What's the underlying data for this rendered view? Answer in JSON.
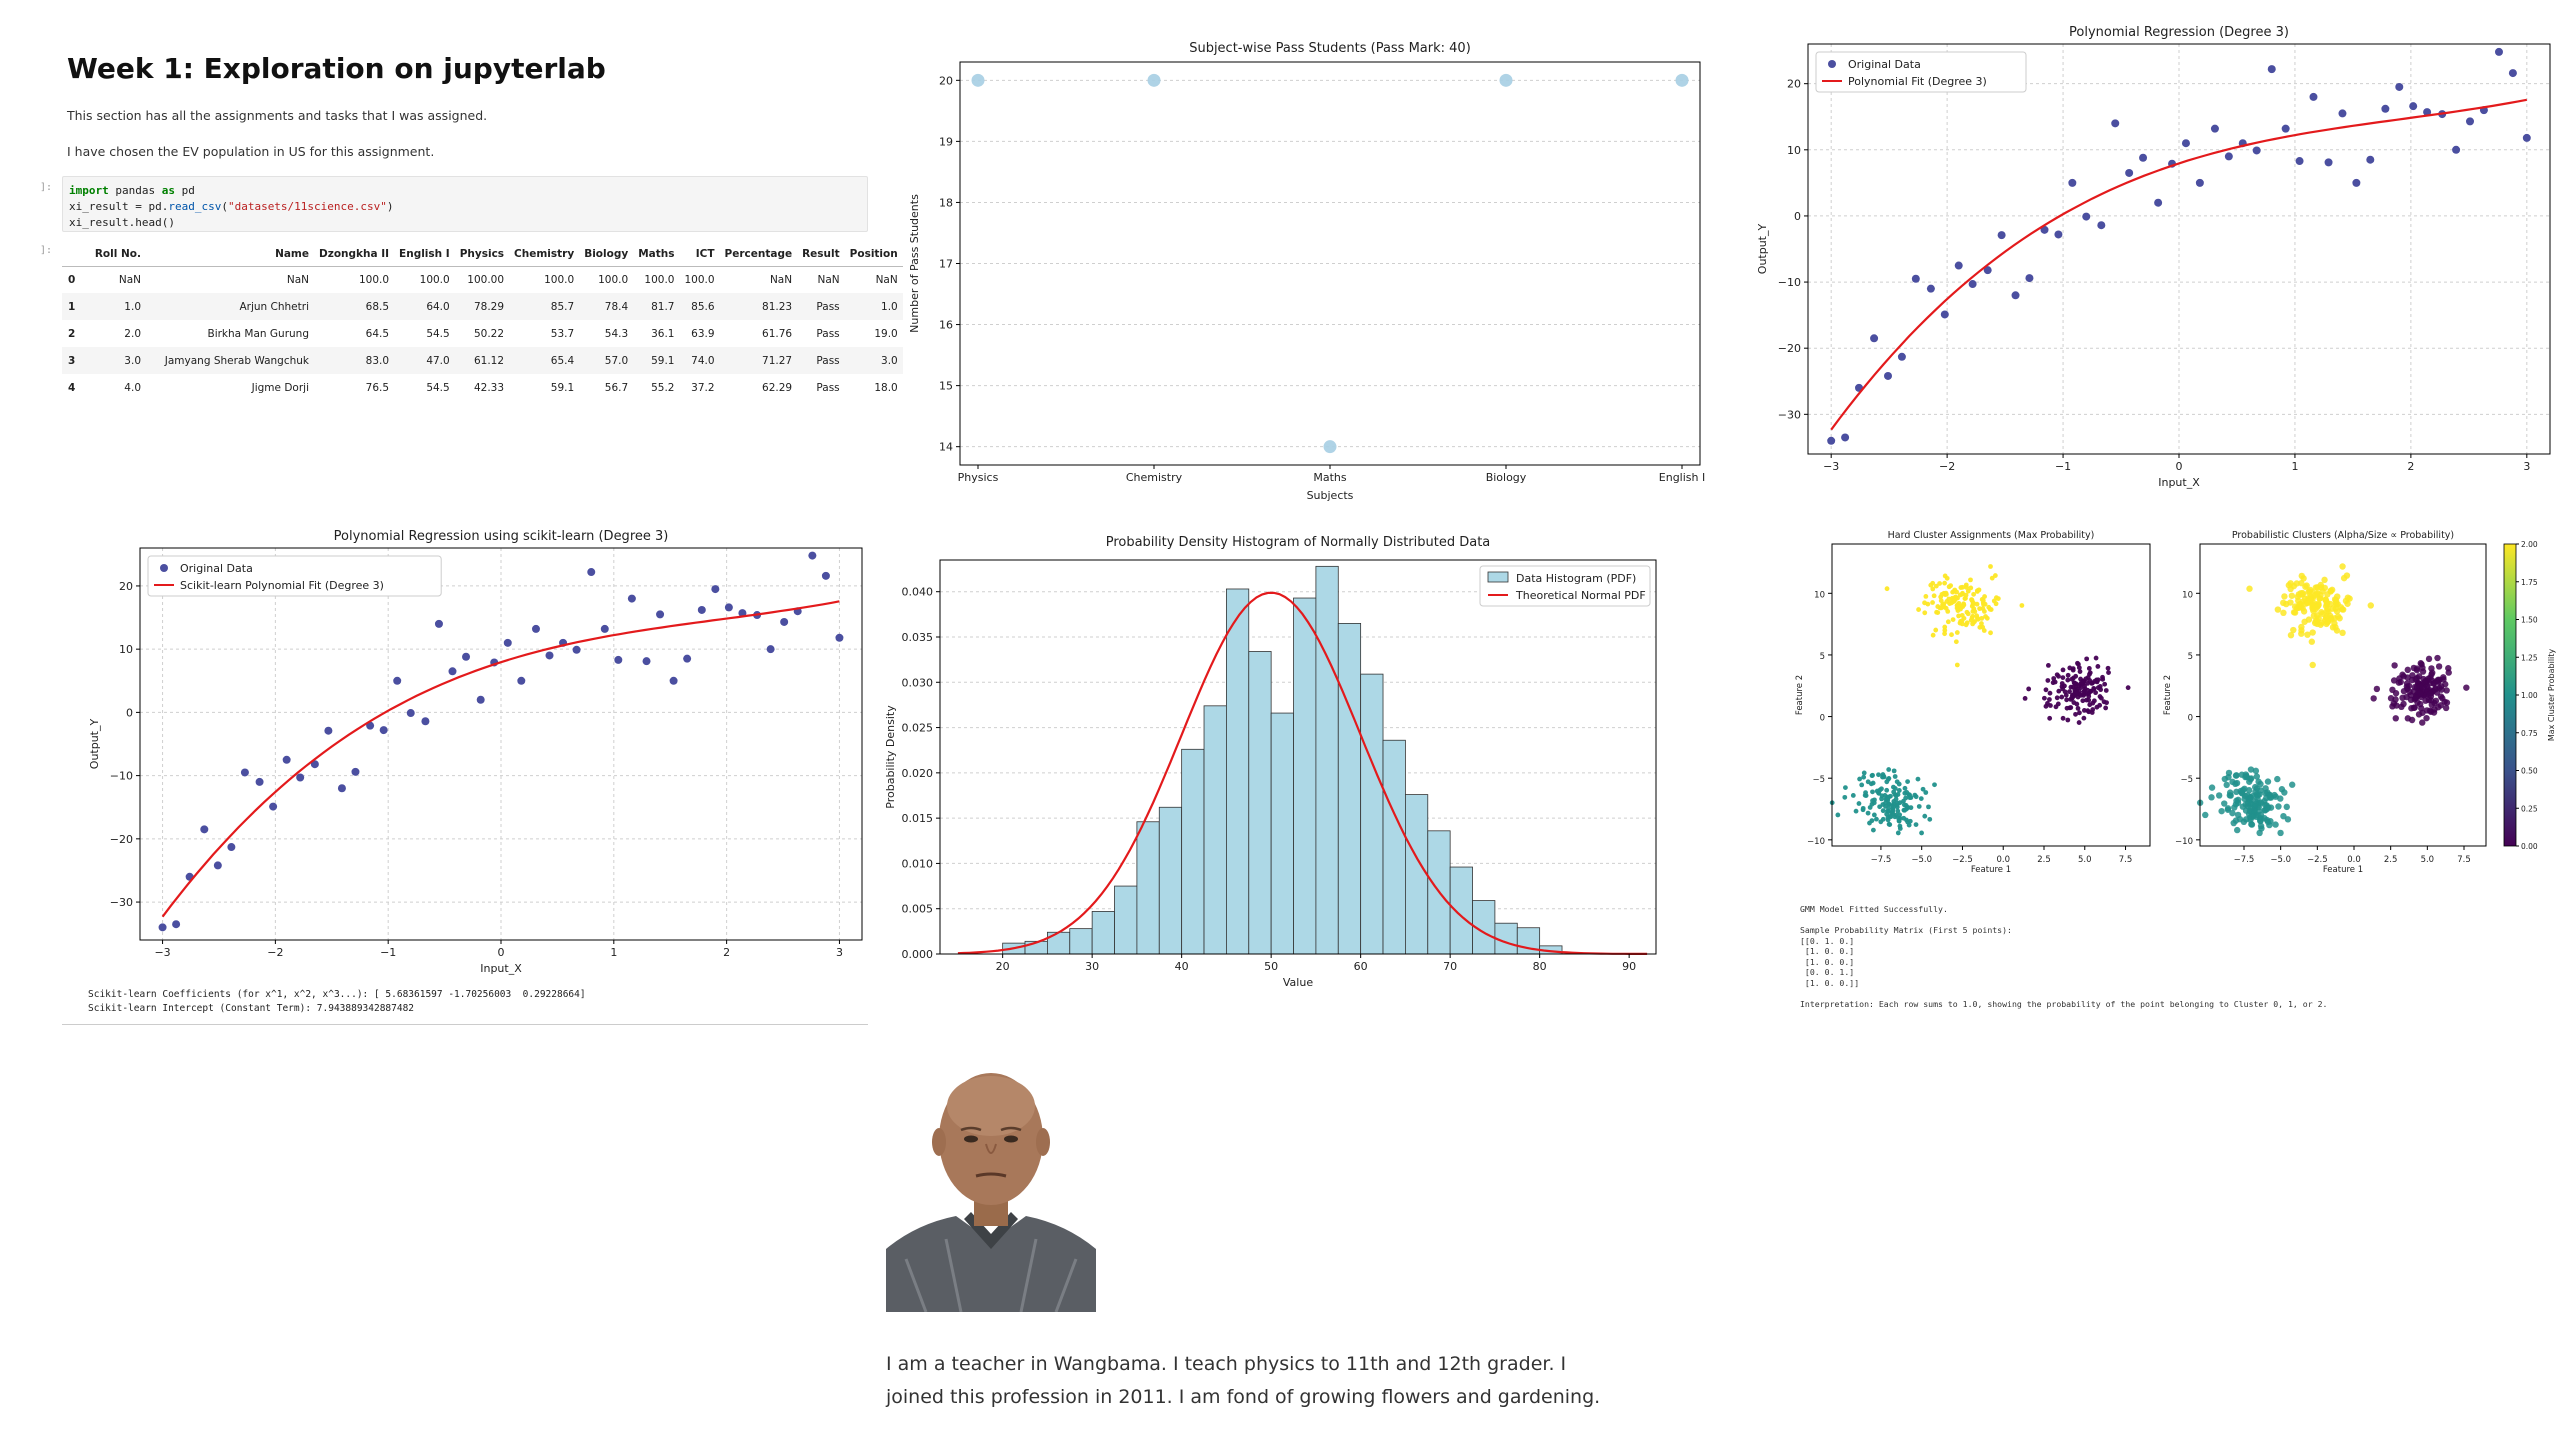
{
  "notebook": {
    "title": "Week 1: Exploration on jupyterlab",
    "intro1": "This section has all the assignments and tasks that I was assigned.",
    "intro2": "I have chosen the EV population in US for this assignment.",
    "prompt_in": "]:",
    "prompt_out": "]:",
    "code_lines": [
      {
        "kw": "import",
        "rest1": " pandas ",
        "kw2": "as",
        "rest2": " pd"
      },
      {
        "pre": "xi_result = pd.",
        "fn": "read_csv",
        "open": "(",
        "str": "\"datasets/11science.csv\"",
        "close": ")"
      },
      {
        "plain": "xi_result.head()"
      }
    ]
  },
  "dataframe": {
    "columns": [
      "",
      "Roll No.",
      "Name",
      "Dzongkha II",
      "English I",
      "Physics",
      "Chemistry",
      "Biology",
      "Maths",
      "ICT",
      "Percentage",
      "Result",
      "Position"
    ],
    "rows": [
      [
        "0",
        "NaN",
        "NaN",
        "100.0",
        "100.0",
        "100.00",
        "100.0",
        "100.0",
        "100.0",
        "100.0",
        "NaN",
        "NaN",
        "NaN"
      ],
      [
        "1",
        "1.0",
        "Arjun Chhetri",
        "68.5",
        "64.0",
        "78.29",
        "85.7",
        "78.4",
        "81.7",
        "85.6",
        "81.23",
        "Pass",
        "1.0"
      ],
      [
        "2",
        "2.0",
        "Birkha Man Gurung",
        "64.5",
        "54.5",
        "50.22",
        "53.7",
        "54.3",
        "36.1",
        "63.9",
        "61.76",
        "Pass",
        "19.0"
      ],
      [
        "3",
        "3.0",
        "Jamyang Sherab Wangchuk",
        "83.0",
        "47.0",
        "61.12",
        "65.4",
        "57.0",
        "59.1",
        "74.0",
        "71.27",
        "Pass",
        "3.0"
      ],
      [
        "4",
        "4.0",
        "Jigme Dorji",
        "76.5",
        "54.5",
        "42.33",
        "59.1",
        "56.7",
        "55.2",
        "37.2",
        "62.29",
        "Pass",
        "18.0"
      ]
    ]
  },
  "chart_data": [
    {
      "type": "scatter",
      "title": "Subject-wise Pass Students (Pass Mark: 40)",
      "xlabel": "Subjects",
      "ylabel": "Number of Pass Students",
      "categories": [
        "Physics",
        "Chemistry",
        "Maths",
        "Biology",
        "English I"
      ],
      "values": [
        20,
        20,
        14,
        20,
        20
      ],
      "ylim": [
        14,
        20
      ],
      "yticks": [
        "14",
        "15",
        "16",
        "17",
        "18",
        "19",
        "20"
      ],
      "grid": "y",
      "color": "#a6cee3"
    },
    {
      "type": "scatter",
      "title": "Polynomial Regression (Degree 3)",
      "xlabel": "Input_X",
      "ylabel": "Output_Y",
      "xlim": [
        -3.2,
        3.2
      ],
      "ylim": [
        -36,
        26
      ],
      "xticks": [
        "−3",
        "−2",
        "−1",
        "0",
        "1",
        "2",
        "3"
      ],
      "yticks": [
        "−30",
        "−20",
        "−10",
        "0",
        "10",
        "20"
      ],
      "legend": [
        "Original Data",
        "Polynomial Fit (Degree 3)"
      ],
      "legend_position": "top-left",
      "x": [
        -3,
        -2.88,
        -2.76,
        -2.63,
        -2.51,
        -2.39,
        -2.27,
        -2.14,
        -2.02,
        -1.9,
        -1.78,
        -1.65,
        -1.53,
        -1.41,
        -1.29,
        -1.16,
        -1.04,
        -0.92,
        -0.8,
        -0.67,
        -0.55,
        -0.43,
        -0.31,
        -0.18,
        -0.06,
        0.06,
        0.18,
        0.31,
        0.43,
        0.55,
        0.67,
        0.8,
        0.92,
        1.04,
        1.16,
        1.29,
        1.41,
        1.53,
        1.65,
        1.78,
        1.9,
        2.02,
        2.14,
        2.27,
        2.39,
        2.51,
        2.63,
        2.76,
        2.88,
        3
      ],
      "y": [
        -34,
        -33.5,
        -26,
        -18.5,
        -24.2,
        -21.3,
        -9.5,
        -11,
        -14.9,
        -7.5,
        -10.3,
        -8.2,
        -2.9,
        -12,
        -9.4,
        -2.1,
        -2.8,
        5,
        -0.1,
        -1.4,
        14,
        6.5,
        8.8,
        2,
        7.9,
        11,
        5,
        13.2,
        9,
        11,
        9.9,
        22.2,
        13.2,
        8.3,
        18,
        8.1,
        15.5,
        5,
        8.5,
        16.2,
        19.5,
        16.6,
        15.7,
        15.4,
        10,
        14.3,
        16,
        24.8,
        21.6,
        11.8
      ],
      "fit_coefficients": [
        7.943889342887482,
        5.68361597,
        -1.70256003,
        0.29228664
      ]
    },
    {
      "type": "scatter",
      "title": "Polynomial Regression using scikit-learn (Degree 3)",
      "xlabel": "Input_X",
      "ylabel": "Output_Y",
      "xlim": [
        -3.2,
        3.2
      ],
      "ylim": [
        -36,
        26
      ],
      "xticks": [
        "−3",
        "−2",
        "−1",
        "0",
        "1",
        "2",
        "3"
      ],
      "yticks": [
        "−30",
        "−20",
        "−10",
        "0",
        "10",
        "20"
      ],
      "legend": [
        "Original Data",
        "Scikit-learn Polynomial Fit (Degree 3)"
      ],
      "legend_position": "top-left"
    },
    {
      "type": "bar",
      "title": "Probability Density Histogram of Normally Distributed Data",
      "xlabel": "Value",
      "ylabel": "Probability Density",
      "bin_start": 20,
      "bin_width": 2.5,
      "values": [
        0.0012,
        0.0014,
        0.0024,
        0.0028,
        0.0047,
        0.0075,
        0.0146,
        0.0162,
        0.0226,
        0.0274,
        0.0403,
        0.0334,
        0.0266,
        0.0393,
        0.0428,
        0.0365,
        0.0309,
        0.0236,
        0.0176,
        0.0136,
        0.0096,
        0.0059,
        0.0034,
        0.0029,
        0.0009
      ],
      "xlim": [
        13,
        93
      ],
      "ylim": [
        0,
        0.0435
      ],
      "xticks": [
        "20",
        "30",
        "40",
        "50",
        "60",
        "70",
        "80",
        "90"
      ],
      "yticks": [
        "0.000",
        "0.005",
        "0.010",
        "0.015",
        "0.020",
        "0.025",
        "0.030",
        "0.035",
        "0.040"
      ],
      "legend": [
        "Data Histogram (PDF)",
        "Theoretical Normal PDF"
      ],
      "legend_position": "top-right",
      "pdf_mean": 50,
      "pdf_std": 10,
      "pdf_range": [
        15,
        92
      ]
    },
    {
      "type": "scatter",
      "title": "Hard Cluster Assignments (Max Probability)",
      "xlabel": "Feature 1",
      "ylabel": "Feature 2",
      "xlim": [
        -10.5,
        9
      ],
      "ylim": [
        -10.5,
        14
      ],
      "xticks": [
        "−7.5",
        "−5.0",
        "−2.5",
        "0.0",
        "2.5",
        "5.0",
        "7.5"
      ],
      "yticks": [
        "−10",
        "−5",
        "0",
        "5",
        "10"
      ],
      "clusters": [
        {
          "center": [
            -2.5,
            9
          ],
          "color": "#fde725"
        },
        {
          "center": [
            4.5,
            2
          ],
          "color": "#440154"
        },
        {
          "center": [
            -6.9,
            -6.8
          ],
          "color": "#21918c"
        }
      ]
    },
    {
      "type": "scatter",
      "title": "Probabilistic Clusters (Alpha/Size ∝ Probability)",
      "xlabel": "Feature 1",
      "ylabel": "Feature 2",
      "colorbar_label": "Max Cluster Probability",
      "colorbar_ticks": [
        "0.00",
        "0.25",
        "0.50",
        "0.75",
        "1.00",
        "1.25",
        "1.50",
        "1.75",
        "2.00"
      ]
    }
  ],
  "coef_text": {
    "line1": "Scikit-learn Coefficients (for x^1, x^2, x^3...): [ 5.68361597 -1.70256003  0.29228664]",
    "line2": "Scikit-learn Intercept (Constant Term): 7.943889342887482"
  },
  "gmm_text": {
    "l1": "GMM Model Fitted Successfully.",
    "l2": "",
    "l3": "Sample Probability Matrix (First 5 points):",
    "l4": "[[0. 1. 0.]",
    "l5": " [1. 0. 0.]",
    "l6": " [1. 0. 0.]",
    "l7": " [0. 0. 1.]",
    "l8": " [1. 0. 0.]]",
    "l9": "",
    "l10": "Interpretation: Each row sums to 1.0, showing the probability of the point belonging to Cluster 0, 1, or 2."
  },
  "bio": {
    "text": "I am a teacher in Wangbama. I teach physics to 11th and 12th grader. I joined this profession in 2011. I am fond of growing flowers and gardening."
  },
  "colors": {
    "scatter_points": "#4b4fa0",
    "fit_line": "#e31a1c",
    "hist_fill": "#add8e6",
    "pass_points": "#a6cee3"
  }
}
